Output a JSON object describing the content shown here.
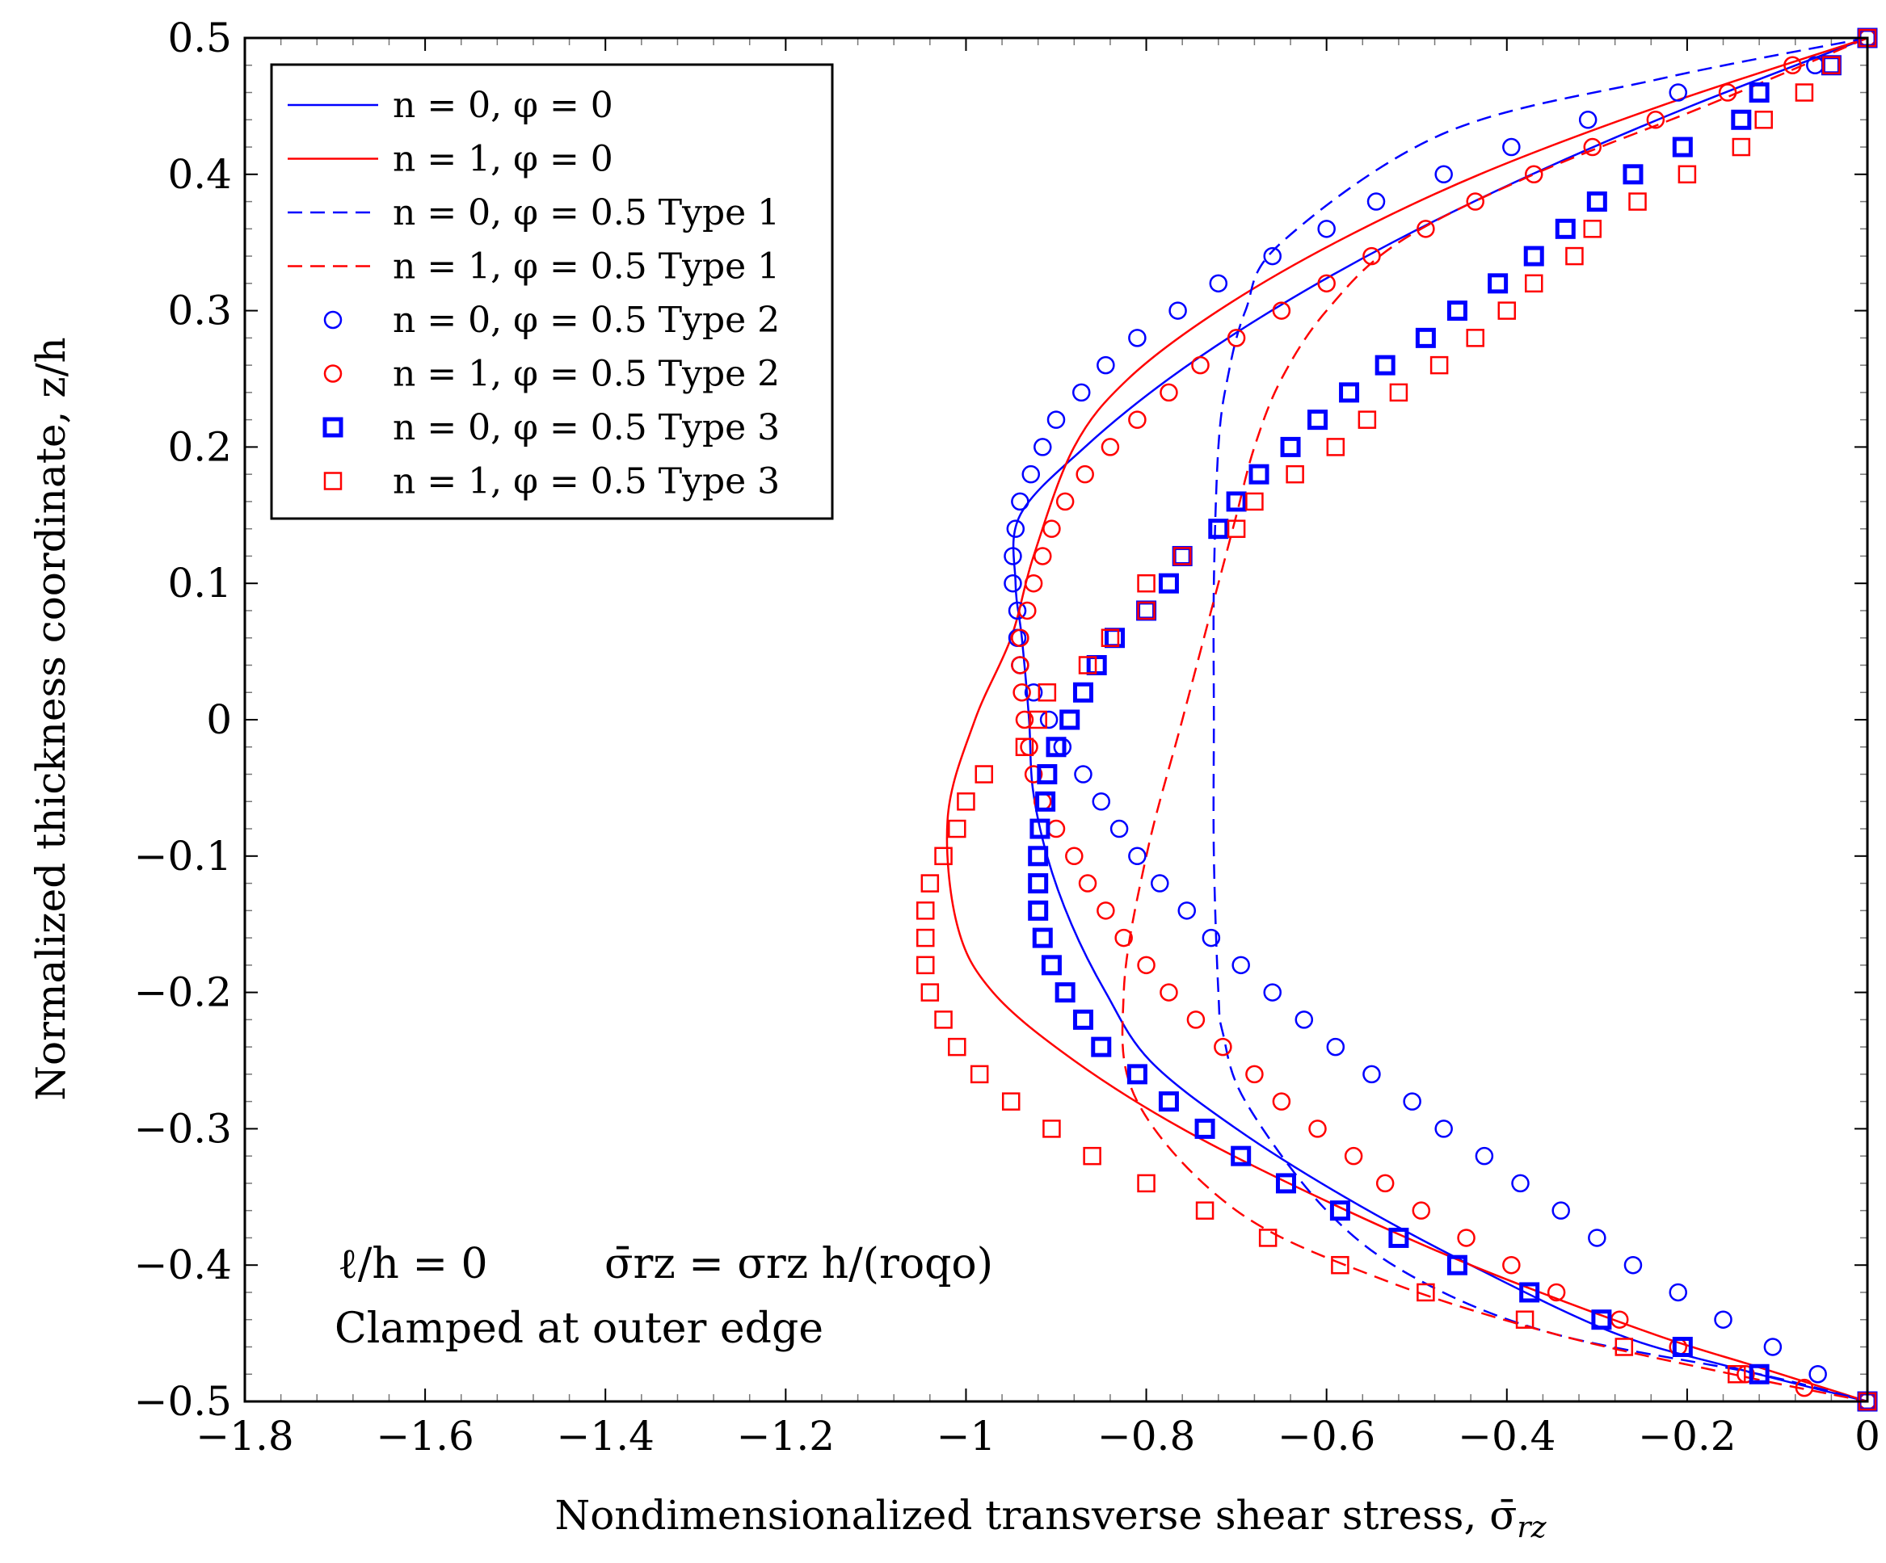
{
  "chart_data": {
    "type": "line",
    "xlabel": "Nondimensionalized transverse shear stress, σ̄",
    "xlabel_sub": "rz",
    "ylabel": "Normalized thickness coordinate, z/h",
    "xlim": [
      -1.8,
      0
    ],
    "ylim": [
      -0.5,
      0.5
    ],
    "x_ticks": [
      -1.8,
      -1.6,
      -1.4,
      -1.2,
      -1,
      -0.8,
      -0.6,
      -0.4,
      -0.2,
      0
    ],
    "x_tick_labels": [
      "−1.8",
      "−1.6",
      "−1.4",
      "−1.2",
      "−1",
      "−0.8",
      "−0.6",
      "−0.4",
      "−0.2",
      "0"
    ],
    "y_ticks": [
      -0.5,
      -0.4,
      -0.3,
      -0.2,
      -0.1,
      0,
      0.1,
      0.2,
      0.3,
      0.4,
      0.5
    ],
    "y_tick_labels": [
      "−0.5",
      "−0.4",
      "−0.3",
      "−0.2",
      "−0.1",
      "0",
      "0.1",
      "0.2",
      "0.3",
      "0.4",
      "0.5"
    ],
    "grid": false,
    "legend_position": "top-left",
    "annotations": {
      "line1_left": "ℓ/h = 0",
      "line1_right": "σ̄rz = σrz h/(roqo)",
      "line2": "Clamped at outer edge"
    },
    "series": [
      {
        "name": "n = 0, φ = 0",
        "color": "#0000ff",
        "style": "solid",
        "marker": "none",
        "points": [
          [
            0,
            0.5
          ],
          [
            -0.196,
            0.45
          ],
          [
            -0.372,
            0.4
          ],
          [
            -0.527,
            0.35
          ],
          [
            -0.661,
            0.3
          ],
          [
            -0.775,
            0.25
          ],
          [
            -0.868,
            0.2
          ],
          [
            -0.94,
            0.15
          ],
          [
            -0.945,
            0.1
          ],
          [
            -0.938,
            0.06
          ],
          [
            -0.93,
            0.0
          ],
          [
            -0.926,
            -0.05
          ],
          [
            -0.91,
            -0.1
          ],
          [
            -0.883,
            -0.15
          ],
          [
            -0.845,
            -0.2
          ],
          [
            -0.796,
            -0.25
          ],
          [
            -0.7,
            -0.3
          ],
          [
            -0.58,
            -0.35
          ],
          [
            -0.44,
            -0.4
          ],
          [
            -0.28,
            -0.45
          ],
          [
            -0.15,
            -0.475
          ],
          [
            0,
            -0.5
          ]
        ]
      },
      {
        "name": "n = 1, φ = 0",
        "color": "#ff0000",
        "style": "solid",
        "marker": "none",
        "points": [
          [
            0,
            0.5
          ],
          [
            -0.23,
            0.45
          ],
          [
            -0.43,
            0.4
          ],
          [
            -0.59,
            0.35
          ],
          [
            -0.72,
            0.3
          ],
          [
            -0.82,
            0.25
          ],
          [
            -0.88,
            0.2
          ],
          [
            -0.925,
            0.12
          ],
          [
            -0.95,
            0.06
          ],
          [
            -0.99,
            0.0
          ],
          [
            -1.02,
            -0.07
          ],
          [
            -1.01,
            -0.15
          ],
          [
            -0.97,
            -0.2
          ],
          [
            -0.88,
            -0.25
          ],
          [
            -0.76,
            -0.3
          ],
          [
            -0.61,
            -0.35
          ],
          [
            -0.44,
            -0.4
          ],
          [
            -0.24,
            -0.45
          ],
          [
            -0.12,
            -0.475
          ],
          [
            0,
            -0.5
          ]
        ]
      },
      {
        "name": "n = 0, φ = 0.5 Type 1",
        "color": "#0000ff",
        "style": "dashed",
        "marker": "none",
        "points": [
          [
            0,
            0.5
          ],
          [
            -0.23,
            0.47
          ],
          [
            -0.47,
            0.43
          ],
          [
            -0.65,
            0.35
          ],
          [
            -0.69,
            0.3
          ],
          [
            -0.71,
            0.25
          ],
          [
            -0.72,
            0.2
          ],
          [
            -0.725,
            0.1
          ],
          [
            -0.725,
            0.0
          ],
          [
            -0.725,
            -0.1
          ],
          [
            -0.72,
            -0.2
          ],
          [
            -0.715,
            -0.23
          ],
          [
            -0.69,
            -0.28
          ],
          [
            -0.6,
            -0.36
          ],
          [
            -0.5,
            -0.41
          ],
          [
            -0.35,
            -0.45
          ],
          [
            -0.12,
            -0.48
          ],
          [
            0,
            -0.5
          ]
        ]
      },
      {
        "name": "n = 1, φ = 0.5 Type 1",
        "color": "#ff0000",
        "style": "dashed",
        "marker": "none",
        "points": [
          [
            0,
            0.5
          ],
          [
            -0.18,
            0.45
          ],
          [
            -0.37,
            0.4
          ],
          [
            -0.52,
            0.35
          ],
          [
            -0.6,
            0.3
          ],
          [
            -0.65,
            0.25
          ],
          [
            -0.68,
            0.2
          ],
          [
            -0.7,
            0.15
          ],
          [
            -0.72,
            0.1
          ],
          [
            -0.76,
            0.0
          ],
          [
            -0.8,
            -0.1
          ],
          [
            -0.825,
            -0.2
          ],
          [
            -0.81,
            -0.28
          ],
          [
            -0.7,
            -0.36
          ],
          [
            -0.54,
            -0.41
          ],
          [
            -0.35,
            -0.45
          ],
          [
            -0.15,
            -0.48
          ],
          [
            0,
            -0.5
          ]
        ]
      },
      {
        "name": "n = 0, φ = 0.5 Type 2",
        "color": "#0000ff",
        "style": "none",
        "marker": "circle",
        "points": [
          [
            0,
            0.5
          ],
          [
            -0.058,
            0.48
          ],
          [
            -0.21,
            0.46
          ],
          [
            -0.31,
            0.44
          ],
          [
            -0.395,
            0.42
          ],
          [
            -0.47,
            0.4
          ],
          [
            -0.545,
            0.38
          ],
          [
            -0.6,
            0.36
          ],
          [
            -0.66,
            0.34
          ],
          [
            -0.72,
            0.32
          ],
          [
            -0.765,
            0.3
          ],
          [
            -0.81,
            0.28
          ],
          [
            -0.845,
            0.26
          ],
          [
            -0.872,
            0.24
          ],
          [
            -0.9,
            0.22
          ],
          [
            -0.915,
            0.2
          ],
          [
            -0.928,
            0.18
          ],
          [
            -0.94,
            0.16
          ],
          [
            -0.945,
            0.14
          ],
          [
            -0.948,
            0.12
          ],
          [
            -0.948,
            0.1
          ],
          [
            -0.943,
            0.08
          ],
          [
            -0.943,
            0.06
          ],
          [
            -0.94,
            0.04
          ],
          [
            -0.925,
            0.02
          ],
          [
            -0.908,
            0.0
          ],
          [
            -0.893,
            -0.02
          ],
          [
            -0.87,
            -0.04
          ],
          [
            -0.85,
            -0.06
          ],
          [
            -0.83,
            -0.08
          ],
          [
            -0.81,
            -0.1
          ],
          [
            -0.785,
            -0.12
          ],
          [
            -0.755,
            -0.14
          ],
          [
            -0.728,
            -0.16
          ],
          [
            -0.695,
            -0.18
          ],
          [
            -0.66,
            -0.2
          ],
          [
            -0.625,
            -0.22
          ],
          [
            -0.59,
            -0.24
          ],
          [
            -0.55,
            -0.26
          ],
          [
            -0.505,
            -0.28
          ],
          [
            -0.47,
            -0.3
          ],
          [
            -0.425,
            -0.32
          ],
          [
            -0.385,
            -0.34
          ],
          [
            -0.34,
            -0.36
          ],
          [
            -0.3,
            -0.38
          ],
          [
            -0.26,
            -0.4
          ],
          [
            -0.21,
            -0.42
          ],
          [
            -0.16,
            -0.44
          ],
          [
            -0.105,
            -0.46
          ],
          [
            -0.055,
            -0.48
          ],
          [
            0,
            -0.5
          ]
        ]
      },
      {
        "name": "n = 1, φ = 0.5 Type 2",
        "color": "#ff0000",
        "style": "none",
        "marker": "circle",
        "points": [
          [
            0,
            0.5
          ],
          [
            -0.083,
            0.48
          ],
          [
            -0.155,
            0.46
          ],
          [
            -0.235,
            0.44
          ],
          [
            -0.305,
            0.42
          ],
          [
            -0.37,
            0.4
          ],
          [
            -0.435,
            0.38
          ],
          [
            -0.49,
            0.36
          ],
          [
            -0.55,
            0.34
          ],
          [
            -0.6,
            0.32
          ],
          [
            -0.65,
            0.3
          ],
          [
            -0.7,
            0.28
          ],
          [
            -0.74,
            0.26
          ],
          [
            -0.775,
            0.24
          ],
          [
            -0.81,
            0.22
          ],
          [
            -0.84,
            0.2
          ],
          [
            -0.868,
            0.18
          ],
          [
            -0.89,
            0.16
          ],
          [
            -0.905,
            0.14
          ],
          [
            -0.915,
            0.12
          ],
          [
            -0.925,
            0.1
          ],
          [
            -0.932,
            0.08
          ],
          [
            -0.94,
            0.06
          ],
          [
            -0.94,
            0.04
          ],
          [
            -0.938,
            0.02
          ],
          [
            -0.935,
            0.0
          ],
          [
            -0.93,
            -0.02
          ],
          [
            -0.925,
            -0.04
          ],
          [
            -0.915,
            -0.06
          ],
          [
            -0.9,
            -0.08
          ],
          [
            -0.88,
            -0.1
          ],
          [
            -0.865,
            -0.12
          ],
          [
            -0.845,
            -0.14
          ],
          [
            -0.825,
            -0.16
          ],
          [
            -0.8,
            -0.18
          ],
          [
            -0.775,
            -0.2
          ],
          [
            -0.745,
            -0.22
          ],
          [
            -0.715,
            -0.24
          ],
          [
            -0.68,
            -0.26
          ],
          [
            -0.65,
            -0.28
          ],
          [
            -0.61,
            -0.3
          ],
          [
            -0.57,
            -0.32
          ],
          [
            -0.535,
            -0.34
          ],
          [
            -0.495,
            -0.36
          ],
          [
            -0.445,
            -0.38
          ],
          [
            -0.395,
            -0.4
          ],
          [
            -0.345,
            -0.42
          ],
          [
            -0.275,
            -0.44
          ],
          [
            -0.21,
            -0.46
          ],
          [
            -0.135,
            -0.48
          ],
          [
            -0.07,
            -0.49
          ],
          [
            0,
            -0.5
          ]
        ]
      },
      {
        "name": "n = 0, φ = 0.5 Type 3",
        "color": "#0000ff",
        "style": "none",
        "marker": "square-bold",
        "points": [
          [
            0,
            0.5
          ],
          [
            -0.04,
            0.48
          ],
          [
            -0.12,
            0.46
          ],
          [
            -0.14,
            0.44
          ],
          [
            -0.205,
            0.42
          ],
          [
            -0.26,
            0.4
          ],
          [
            -0.3,
            0.38
          ],
          [
            -0.335,
            0.36
          ],
          [
            -0.37,
            0.34
          ],
          [
            -0.41,
            0.32
          ],
          [
            -0.455,
            0.3
          ],
          [
            -0.49,
            0.28
          ],
          [
            -0.535,
            0.26
          ],
          [
            -0.575,
            0.24
          ],
          [
            -0.61,
            0.22
          ],
          [
            -0.64,
            0.2
          ],
          [
            -0.675,
            0.18
          ],
          [
            -0.7,
            0.16
          ],
          [
            -0.72,
            0.14
          ],
          [
            -0.76,
            0.12
          ],
          [
            -0.775,
            0.1
          ],
          [
            -0.8,
            0.08
          ],
          [
            -0.835,
            0.06
          ],
          [
            -0.855,
            0.04
          ],
          [
            -0.87,
            0.02
          ],
          [
            -0.885,
            0.0
          ],
          [
            -0.9,
            -0.02
          ],
          [
            -0.91,
            -0.04
          ],
          [
            -0.912,
            -0.06
          ],
          [
            -0.918,
            -0.08
          ],
          [
            -0.92,
            -0.1
          ],
          [
            -0.92,
            -0.12
          ],
          [
            -0.92,
            -0.14
          ],
          [
            -0.915,
            -0.16
          ],
          [
            -0.905,
            -0.18
          ],
          [
            -0.89,
            -0.2
          ],
          [
            -0.87,
            -0.22
          ],
          [
            -0.85,
            -0.24
          ],
          [
            -0.81,
            -0.26
          ],
          [
            -0.775,
            -0.28
          ],
          [
            -0.735,
            -0.3
          ],
          [
            -0.695,
            -0.32
          ],
          [
            -0.645,
            -0.34
          ],
          [
            -0.585,
            -0.36
          ],
          [
            -0.52,
            -0.38
          ],
          [
            -0.455,
            -0.4
          ],
          [
            -0.375,
            -0.42
          ],
          [
            -0.295,
            -0.44
          ],
          [
            -0.205,
            -0.46
          ],
          [
            -0.12,
            -0.48
          ],
          [
            0,
            -0.5
          ]
        ]
      },
      {
        "name": "n = 1, φ = 0.5 Type 3",
        "color": "#ff0000",
        "style": "none",
        "marker": "square",
        "points": [
          [
            0,
            0.5
          ],
          [
            -0.04,
            0.48
          ],
          [
            -0.07,
            0.46
          ],
          [
            -0.115,
            0.44
          ],
          [
            -0.14,
            0.42
          ],
          [
            -0.2,
            0.4
          ],
          [
            -0.255,
            0.38
          ],
          [
            -0.305,
            0.36
          ],
          [
            -0.325,
            0.34
          ],
          [
            -0.37,
            0.32
          ],
          [
            -0.4,
            0.3
          ],
          [
            -0.435,
            0.28
          ],
          [
            -0.475,
            0.26
          ],
          [
            -0.52,
            0.24
          ],
          [
            -0.555,
            0.22
          ],
          [
            -0.59,
            0.2
          ],
          [
            -0.635,
            0.18
          ],
          [
            -0.68,
            0.16
          ],
          [
            -0.7,
            0.14
          ],
          [
            -0.76,
            0.12
          ],
          [
            -0.8,
            0.1
          ],
          [
            -0.8,
            0.08
          ],
          [
            -0.84,
            0.06
          ],
          [
            -0.865,
            0.04
          ],
          [
            -0.91,
            0.02
          ],
          [
            -0.92,
            0.0
          ],
          [
            -0.935,
            -0.02
          ],
          [
            -0.98,
            -0.04
          ],
          [
            -1.0,
            -0.06
          ],
          [
            -1.01,
            -0.08
          ],
          [
            -1.025,
            -0.1
          ],
          [
            -1.04,
            -0.12
          ],
          [
            -1.045,
            -0.14
          ],
          [
            -1.045,
            -0.16
          ],
          [
            -1.045,
            -0.18
          ],
          [
            -1.04,
            -0.2
          ],
          [
            -1.025,
            -0.22
          ],
          [
            -1.01,
            -0.24
          ],
          [
            -0.985,
            -0.26
          ],
          [
            -0.95,
            -0.28
          ],
          [
            -0.905,
            -0.3
          ],
          [
            -0.86,
            -0.32
          ],
          [
            -0.8,
            -0.34
          ],
          [
            -0.735,
            -0.36
          ],
          [
            -0.665,
            -0.38
          ],
          [
            -0.585,
            -0.4
          ],
          [
            -0.49,
            -0.42
          ],
          [
            -0.38,
            -0.44
          ],
          [
            -0.27,
            -0.46
          ],
          [
            -0.145,
            -0.48
          ],
          [
            0,
            -0.5
          ]
        ]
      }
    ]
  }
}
